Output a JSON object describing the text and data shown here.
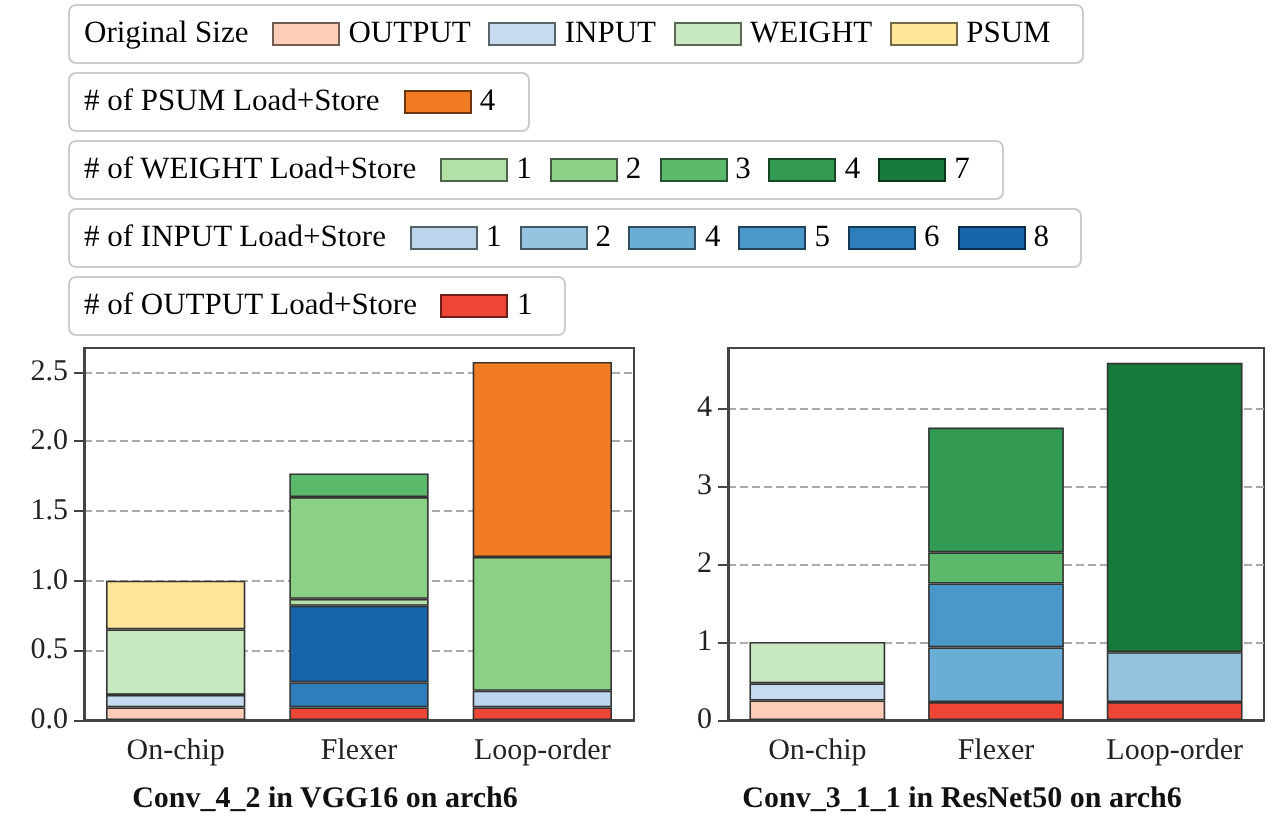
{
  "chart_data": [
    {
      "type": "bar",
      "title": "Conv_4_2 in VGG16 on arch6",
      "legend_title": "Original Size",
      "annotations": [
        "# of PSUM Load+Store",
        "# of WEIGHT Load+Store",
        "# of INPUT Load+Store",
        "# of OUTPUT Load+Store"
      ],
      "categories": [
        "On-chip",
        "Flexer",
        "Loop-order"
      ],
      "stacked": true,
      "ylim": [
        0,
        2.67
      ],
      "yticks": [
        {
          "value": 0,
          "label": "0.0"
        },
        {
          "value": 0.5,
          "label": "0.5"
        },
        {
          "value": 1,
          "label": "1.0"
        },
        {
          "value": 1.5,
          "label": "1.5"
        },
        {
          "value": 2,
          "label": "2.0"
        },
        {
          "value": 2.5,
          "label": "2.5"
        }
      ],
      "grid": "y",
      "legend": "top",
      "series": [
        {
          "name": "OUTPUT",
          "color": "#fdcdb9",
          "values": [
            0.09,
            null,
            null
          ]
        },
        {
          "name": "INPUT",
          "color": "#c6dbef",
          "values": [
            0.09,
            null,
            null
          ]
        },
        {
          "name": "WEIGHT",
          "color": "#c7e9c0",
          "values": [
            0.47,
            null,
            null
          ]
        },
        {
          "name": "PSUM",
          "color": "#fde69a",
          "values": [
            0.35,
            null,
            null
          ]
        },
        {
          "name": "4",
          "color": "#f07b22",
          "values": [
            null,
            null,
            null
          ]
        },
        {
          "name": "1",
          "color": "#b3e0a6",
          "values": [
            null,
            null,
            null
          ]
        },
        {
          "name": "2",
          "color": "#8ccf86",
          "values": [
            null,
            null,
            null
          ]
        },
        {
          "name": "3",
          "color": "#5ab96a",
          "values": [
            null,
            null,
            null
          ]
        },
        {
          "name": "4",
          "color": "#329a52",
          "values": [
            null,
            null,
            null
          ]
        },
        {
          "name": "7",
          "color": "#187a3a",
          "values": [
            null,
            null,
            null
          ]
        },
        {
          "name": "1",
          "color": "#bad5ec",
          "values": [
            null,
            null,
            null
          ]
        },
        {
          "name": "2",
          "color": "#94c4df",
          "values": [
            null,
            null,
            null
          ]
        },
        {
          "name": "4",
          "color": "#6aaed6",
          "values": [
            null,
            null,
            null
          ]
        },
        {
          "name": "5",
          "color": "#4a98c9",
          "values": [
            null,
            null,
            null
          ]
        },
        {
          "name": "6",
          "color": "#2e7ebc",
          "values": [
            null,
            null,
            null
          ]
        },
        {
          "name": "8",
          "color": "#1764ab",
          "values": [
            null,
            null,
            null
          ]
        },
        {
          "name": "1",
          "color": "#ee4536",
          "values": [
            null,
            null,
            null
          ]
        },
        {
          "color": "#ee4536",
          "values": [
            null,
            0.09,
            0.09
          ]
        },
        {
          "color": "#bad5ec",
          "values": [
            null,
            null,
            0.12
          ]
        },
        {
          "color": "#2e7ebc",
          "values": [
            null,
            0.18,
            null
          ]
        },
        {
          "color": "#1764ab",
          "values": [
            null,
            0.55,
            null
          ]
        },
        {
          "color": "#b3e0a6",
          "values": [
            null,
            0.05,
            null
          ]
        },
        {
          "color": "#8ccf86",
          "values": [
            null,
            0.73,
            0.96
          ]
        },
        {
          "color": "#5ab96a",
          "values": [
            null,
            0.17,
            null
          ]
        },
        {
          "color": "#f07b22",
          "values": [
            null,
            null,
            1.4
          ]
        }
      ]
    },
    {
      "type": "bar",
      "title": "Conv_3_1_1 in ResNet50 on arch6",
      "categories": [
        "On-chip",
        "Flexer",
        "Loop-order"
      ],
      "stacked": true,
      "ylim": [
        0,
        4.77
      ],
      "yticks": [
        0,
        1,
        2,
        3,
        4
      ],
      "grid": "y",
      "series": [
        {
          "color": "#fdcdb9",
          "values": [
            0.25,
            null,
            null
          ]
        },
        {
          "color": "#c6dbef",
          "values": [
            0.22,
            null,
            null
          ]
        },
        {
          "color": "#c7e9c0",
          "values": [
            0.53,
            null,
            null
          ]
        },
        {
          "color": "#ee4536",
          "values": [
            null,
            0.23,
            0.23
          ]
        },
        {
          "color": "#94c4df",
          "values": [
            null,
            null,
            0.64
          ]
        },
        {
          "color": "#6aaed6",
          "values": [
            null,
            0.7,
            null
          ]
        },
        {
          "color": "#4a98c9",
          "values": [
            null,
            0.82,
            null
          ]
        },
        {
          "color": "#5ab96a",
          "values": [
            null,
            0.4,
            null
          ]
        },
        {
          "color": "#329a52",
          "values": [
            null,
            1.6,
            null
          ]
        },
        {
          "color": "#187a3a",
          "values": [
            null,
            null,
            3.71
          ]
        }
      ]
    }
  ]
}
